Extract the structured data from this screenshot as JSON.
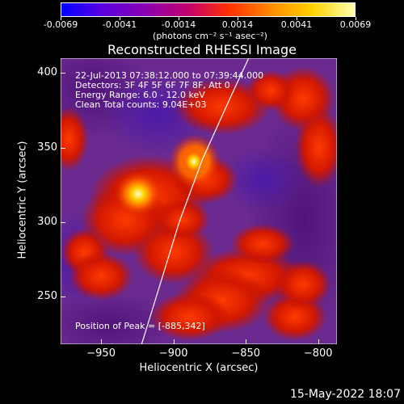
{
  "colorbar": {
    "ticks": [
      "-0.0069",
      "-0.0041",
      "-0.0014",
      "0.0014",
      "0.0041",
      "0.0069"
    ],
    "units": "(photons cm⁻² s⁻¹ asec⁻²)",
    "colors": [
      "#0000ff",
      "#5a00e0",
      "#8a00b0",
      "#c00070",
      "#ff3000",
      "#ff8a00",
      "#ffd200",
      "#ffffb0"
    ]
  },
  "plot": {
    "title": "Reconstructed RHESSI Image",
    "xlabel": "Heliocentric X (arcsec)",
    "ylabel": "Heliocentric Y (arcsec)",
    "xticks": [
      "−950",
      "−900",
      "−850",
      "−800"
    ],
    "yticks": [
      "400",
      "350",
      "300",
      "250"
    ],
    "annotations": {
      "time": "22-Jul-2013 07:38:12.000 to 07:39:44.000",
      "detectors": "Detectors: 3F 4F 5F 6F 7F 8F, Att 0",
      "energy": "Energy Range: 6.0 - 12.0 keV",
      "clean": "Clean     Total counts: 9.04E+03",
      "peak": "Position of Peak = [-885,342]"
    }
  },
  "footer": {
    "timestamp": "15-May-2022 18:07"
  },
  "chart_data": {
    "type": "heatmap",
    "title": "Reconstructed RHESSI Image",
    "xlabel": "Heliocentric X (arcsec)",
    "ylabel": "Heliocentric Y (arcsec)",
    "xlim": [
      -978,
      -787
    ],
    "ylim": [
      218,
      410
    ],
    "colorbar_range": [
      -0.0069,
      0.0069
    ],
    "peak": [
      -885,
      342
    ],
    "limb_curve": [
      [
        -922,
        218
      ],
      [
        -908,
        262
      ],
      [
        -896,
        300
      ],
      [
        -880,
        342
      ],
      [
        -860,
        385
      ],
      [
        -848,
        410
      ]
    ]
  }
}
